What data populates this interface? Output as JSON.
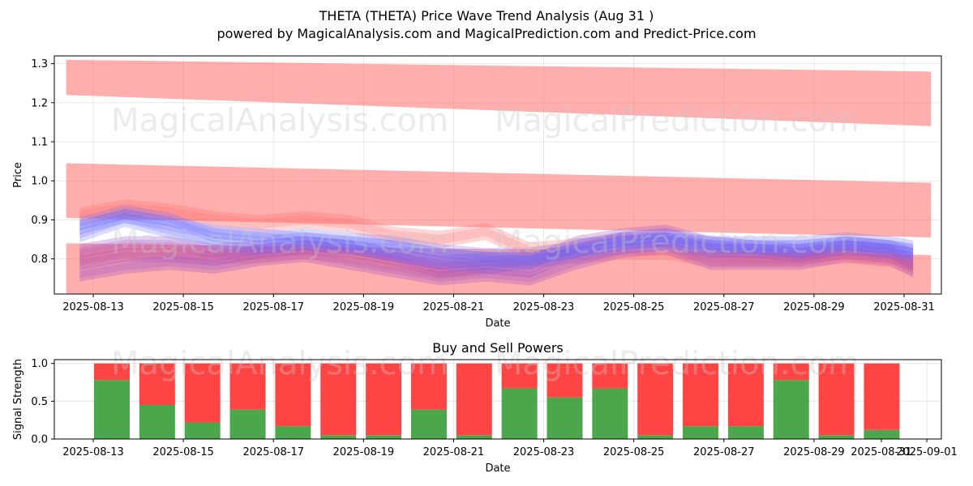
{
  "title": "THETA (THETA) Price Wave Trend Analysis (Aug 31 )",
  "subtitle": "powered by MagicalAnalysis.com and MagicalPrediction.com and Predict-Price.com",
  "watermarks": {
    "top_left": "MagicalAnalysis.com",
    "top_right": "MagicalPrediction.com",
    "mid_left": "MagicalAnalysis.com",
    "mid_right": "MagicalPrediction.com",
    "bottom_left": "MagicalAnalysis.com",
    "bottom_right": "MagicalPrediction.com"
  },
  "chart_data": [
    {
      "type": "area",
      "xlabel": "Date",
      "ylabel": "Price",
      "ylim": [
        0.71,
        1.32
      ],
      "yticks": [
        "0.8",
        "0.9",
        "1.0",
        "1.1",
        "1.2",
        "1.3"
      ],
      "xticks": [
        "2025-08-13",
        "2025-08-15",
        "2025-08-17",
        "2025-08-19",
        "2025-08-21",
        "2025-08-23",
        "2025-08-25",
        "2025-08-27",
        "2025-08-29",
        "2025-08-31"
      ],
      "grid": true,
      "colors": {
        "red_band": "#ff6b6b",
        "blue_band": "#6b6bff",
        "purple_band": "#9b4dca"
      },
      "red_bands": [
        {
          "x": [
            "2025-08-12.4",
            "2025-08-31.6"
          ],
          "upper": [
            1.31,
            1.28
          ],
          "lower": [
            1.22,
            1.14
          ]
        },
        {
          "x": [
            "2025-08-12.4",
            "2025-08-31.6"
          ],
          "upper": [
            1.045,
            0.995
          ],
          "lower": [
            0.905,
            0.855
          ]
        },
        {
          "x": [
            "2025-08-12.4",
            "2025-08-31.6"
          ],
          "upper": [
            0.84,
            0.81
          ],
          "lower": [
            0.7,
            0.7
          ]
        }
      ],
      "wave_dates": [
        "2025-08-12.7",
        "2025-08-13.7",
        "2025-08-14.7",
        "2025-08-15.7",
        "2025-08-16.7",
        "2025-08-17.7",
        "2025-08-18.7",
        "2025-08-19.7",
        "2025-08-20.7",
        "2025-08-21.7",
        "2025-08-22.7",
        "2025-08-23.7",
        "2025-08-24.7",
        "2025-08-25.7",
        "2025-08-26.7",
        "2025-08-27.7",
        "2025-08-28.7",
        "2025-08-29.7",
        "2025-08-30.7",
        "2025-08-31.2"
      ],
      "blue_waves": [
        [
          0.88,
          0.91,
          0.89,
          0.87,
          0.86,
          0.85,
          0.84,
          0.83,
          0.81,
          0.8,
          0.8,
          0.82,
          0.84,
          0.85,
          0.84,
          0.83,
          0.83,
          0.84,
          0.83,
          0.82
        ],
        [
          0.86,
          0.9,
          0.87,
          0.84,
          0.83,
          0.84,
          0.83,
          0.81,
          0.79,
          0.78,
          0.79,
          0.81,
          0.83,
          0.84,
          0.82,
          0.82,
          0.82,
          0.83,
          0.82,
          0.81
        ],
        [
          0.89,
          0.92,
          0.9,
          0.86,
          0.85,
          0.86,
          0.85,
          0.84,
          0.82,
          0.81,
          0.81,
          0.83,
          0.85,
          0.86,
          0.84,
          0.84,
          0.84,
          0.85,
          0.84,
          0.83
        ]
      ],
      "red_waves": [
        [
          0.91,
          0.93,
          0.92,
          0.9,
          0.89,
          0.9,
          0.89,
          0.86,
          0.85,
          0.87,
          0.82,
          0.83,
          0.84,
          0.84,
          0.82,
          0.81,
          0.81,
          0.82,
          0.81,
          0.79
        ],
        [
          0.8,
          0.82,
          0.82,
          0.81,
          0.81,
          0.82,
          0.81,
          0.79,
          0.77,
          0.78,
          0.8,
          0.81,
          0.82,
          0.82,
          0.8,
          0.8,
          0.8,
          0.81,
          0.8,
          0.78
        ]
      ],
      "purple_waves": [
        [
          0.79,
          0.81,
          0.81,
          0.8,
          0.82,
          0.83,
          0.82,
          0.8,
          0.77,
          0.78,
          0.77,
          0.82,
          0.85,
          0.85,
          0.82,
          0.82,
          0.81,
          0.83,
          0.82,
          0.79
        ],
        [
          0.76,
          0.78,
          0.79,
          0.78,
          0.8,
          0.81,
          0.79,
          0.77,
          0.75,
          0.76,
          0.75,
          0.79,
          0.82,
          0.83,
          0.79,
          0.79,
          0.79,
          0.81,
          0.8,
          0.77
        ],
        [
          0.82,
          0.84,
          0.84,
          0.82,
          0.83,
          0.84,
          0.83,
          0.81,
          0.79,
          0.8,
          0.79,
          0.84,
          0.86,
          0.87,
          0.84,
          0.83,
          0.82,
          0.84,
          0.83,
          0.81
        ]
      ]
    },
    {
      "type": "bar",
      "title": "Buy and Sell Powers",
      "xlabel": "Date",
      "ylabel": "Signal Strength",
      "ylim": [
        0,
        1.05
      ],
      "yticks": [
        "0.0",
        "0.5",
        "1.0"
      ],
      "xticks": [
        "2025-08-13",
        "2025-08-15",
        "2025-08-17",
        "2025-08-19",
        "2025-08-21",
        "2025-08-23",
        "2025-08-25",
        "2025-08-27",
        "2025-08-29",
        "2025-08-31",
        "2025-09-01"
      ],
      "grid": true,
      "categories": [
        "2025-08-14",
        "2025-08-15",
        "2025-08-16",
        "2025-08-17",
        "2025-08-18",
        "2025-08-19",
        "2025-08-20",
        "2025-08-21",
        "2025-08-22",
        "2025-08-23",
        "2025-08-24",
        "2025-08-25",
        "2025-08-26",
        "2025-08-27",
        "2025-08-28",
        "2025-08-29",
        "2025-08-30",
        "2025-08-31"
      ],
      "series": [
        {
          "color": "#4ca64c",
          "values": [
            0.78,
            0.45,
            0.22,
            0.39,
            0.17,
            0.05,
            0.05,
            0.39,
            0.05,
            0.67,
            0.55,
            0.67,
            0.05,
            0.17,
            0.17,
            0.78,
            0.05,
            0.12
          ]
        },
        {
          "color": "#ff4444",
          "values": [
            0.22,
            0.55,
            0.78,
            0.61,
            0.83,
            0.95,
            0.95,
            0.61,
            0.95,
            0.33,
            0.45,
            0.33,
            0.95,
            0.83,
            0.83,
            0.22,
            0.95,
            0.88
          ]
        }
      ]
    }
  ]
}
